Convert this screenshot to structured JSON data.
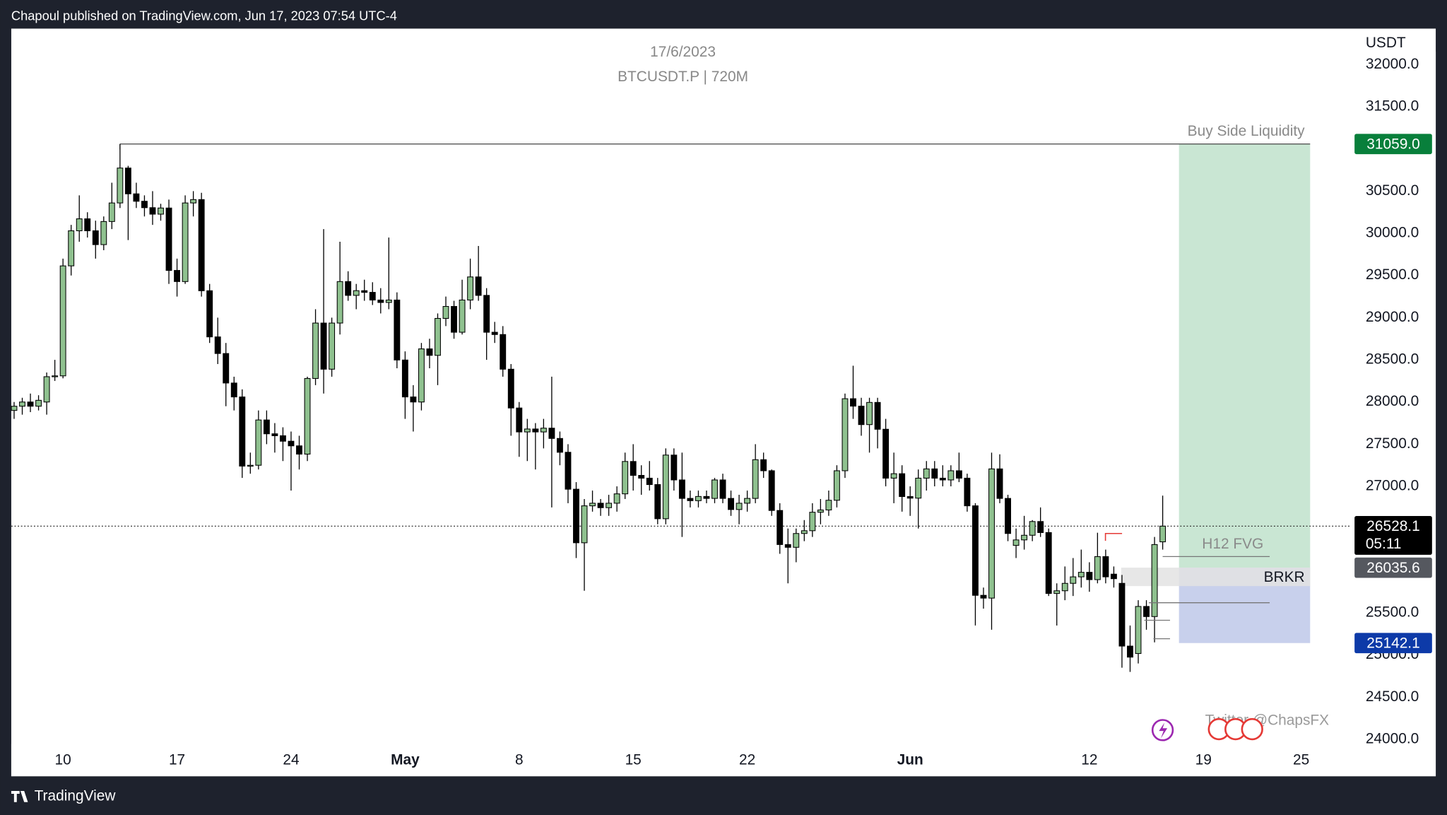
{
  "header": {
    "text": "Chapoul published on TradingView.com, Jun 17, 2023 07:54 UTC-4"
  },
  "footer": {
    "brand": "TradingView"
  },
  "chart_data": {
    "type": "candlestick",
    "title": "17/6/2023",
    "subtitle": "BTCUSDT.P | 720M",
    "y_axis_label": "USDT",
    "up_color": "#8fc18f",
    "down_color": "#000000",
    "open": [
      27900,
      27950,
      28000,
      27950,
      28000,
      28300,
      28310,
      29614,
      30030,
      30172,
      30030,
      29866,
      30140,
      30360,
      30774,
      30468,
      30380,
      30304,
      30227,
      30300,
      29560,
      29428,
      30360,
      30400,
      29319,
      28772,
      28575,
      28225,
      28060,
      27240,
      27250,
      27787,
      27623,
      27600,
      27535,
      27480,
      27382,
      28279,
      28936,
      28389,
      28936,
      29428,
      29264,
      29320,
      29300,
      29209,
      29180,
      29209,
      28498,
      28060,
      28000,
      28630,
      28553,
      28991,
      29133,
      28827,
      29209,
      29483,
      29264,
      28827,
      28800,
      28389,
      27929,
      27645,
      27680,
      27645,
      27690,
      27568,
      27404,
      26966,
      26331,
      26769,
      26800,
      26747,
      26800,
      26911,
      27295,
      27130,
      27097,
      27021,
      26616,
      27371,
      27076,
      26857,
      26830,
      26880,
      26857,
      27076,
      26857,
      26725,
      26800,
      26857,
      27316,
      27185,
      26714,
      26310,
      26277,
      26441,
      26474,
      26693,
      26720,
      26835,
      27185,
      28039,
      27951,
      27732,
      27995,
      27677,
      27097,
      27150,
      26879,
      26860,
      27097,
      27207,
      27097,
      27076,
      27185,
      27097,
      26769,
      25708,
      25675,
      27207,
      26857,
      26300,
      26365,
      26420,
      26583,
      26452,
      25730,
      25762,
      25850,
      25927,
      25981,
      25894,
      26167,
      25959,
      25850,
      25106,
      25018,
      25576,
      25456,
      26342
    ],
    "high": [
      28000,
      28050,
      28100,
      28080,
      28350,
      28500,
      29700,
      30100,
      30450,
      30250,
      30150,
      30200,
      30600,
      31059,
      30800,
      30600,
      30450,
      30500,
      30350,
      30400,
      29700,
      30450,
      30500,
      30480,
      29400,
      29000,
      28700,
      28300,
      28150,
      27400,
      27900,
      27900,
      27750,
      27700,
      27650,
      27600,
      28300,
      29100,
      30050,
      29000,
      29900,
      29550,
      29400,
      29450,
      29420,
      29350,
      29950,
      29300,
      28600,
      28200,
      28700,
      28750,
      29050,
      29250,
      29200,
      29450,
      29700,
      29850,
      29350,
      28950,
      28900,
      28450,
      28000,
      27800,
      27750,
      27800,
      28300,
      27650,
      27500,
      27050,
      26850,
      26950,
      26850,
      26900,
      27000,
      27400,
      27500,
      27250,
      27300,
      27100,
      27450,
      27450,
      27400,
      26950,
      26950,
      26950,
      27100,
      27150,
      26950,
      26900,
      26950,
      27500,
      27400,
      27200,
      26800,
      26500,
      26500,
      26600,
      26800,
      26850,
      26950,
      27250,
      28100,
      28430,
      28050,
      28050,
      28050,
      27800,
      27400,
      27250,
      27000,
      27200,
      27300,
      27300,
      27250,
      27250,
      27400,
      27150,
      26800,
      25800,
      27400,
      27380,
      26900,
      26500,
      26650,
      26600,
      26750,
      26500,
      25850,
      26050,
      26150,
      26250,
      26100,
      26450,
      26250,
      26050,
      25950,
      25350,
      25650,
      25650,
      26400,
      26890
    ],
    "low": [
      27800,
      27850,
      27880,
      27900,
      27850,
      28250,
      28280,
      29500,
      29900,
      29950,
      29700,
      29800,
      30050,
      30300,
      29920,
      30300,
      30200,
      30100,
      30150,
      29400,
      29250,
      29400,
      30200,
      29250,
      28700,
      28450,
      27950,
      27900,
      27100,
      27150,
      27200,
      27500,
      27400,
      27300,
      26950,
      27200,
      27300,
      28200,
      28100,
      28300,
      28800,
      29200,
      29100,
      29200,
      29150,
      29050,
      29100,
      28400,
      27800,
      27650,
      27900,
      28400,
      28200,
      28900,
      28750,
      28800,
      29100,
      29200,
      28500,
      28700,
      28300,
      27600,
      27350,
      27300,
      27200,
      27450,
      26750,
      27250,
      26800,
      26150,
      25762,
      26700,
      26650,
      26650,
      26700,
      26850,
      26950,
      26900,
      26950,
      26550,
      26550,
      26950,
      26400,
      26750,
      26750,
      26800,
      26800,
      26800,
      26650,
      26550,
      26700,
      26800,
      27100,
      26650,
      26200,
      25850,
      26100,
      26350,
      26400,
      26550,
      26650,
      26750,
      27100,
      27800,
      27600,
      27400,
      27450,
      27000,
      26800,
      26700,
      26650,
      26500,
      26950,
      27000,
      27000,
      27000,
      27050,
      26700,
      25350,
      25550,
      25300,
      26800,
      26350,
      26150,
      26250,
      26350,
      26400,
      25700,
      25350,
      25650,
      25700,
      25800,
      25750,
      25850,
      25850,
      25800,
      24850,
      24800,
      24900,
      25300,
      25150,
      26250
    ],
    "close": [
      27950,
      28000,
      27950,
      28020,
      28300,
      28310,
      29614,
      30030,
      30172,
      30030,
      29866,
      30140,
      30360,
      30774,
      30468,
      30380,
      30304,
      30227,
      30300,
      29560,
      29428,
      30360,
      30400,
      29319,
      28772,
      28575,
      28225,
      28060,
      27240,
      27250,
      27787,
      27623,
      27600,
      27535,
      27480,
      27382,
      28279,
      28936,
      28389,
      28936,
      29428,
      29264,
      29320,
      29300,
      29209,
      29180,
      29209,
      28498,
      28060,
      28000,
      28630,
      28553,
      28991,
      29133,
      28827,
      29209,
      29483,
      29264,
      28827,
      28800,
      28389,
      27929,
      27645,
      27680,
      27645,
      27690,
      27568,
      27404,
      26966,
      26331,
      26769,
      26800,
      26747,
      26800,
      26911,
      27295,
      27130,
      27097,
      27021,
      26616,
      27371,
      27076,
      26857,
      26830,
      26880,
      26857,
      27076,
      26857,
      26725,
      26800,
      26857,
      27316,
      27185,
      26714,
      26310,
      26277,
      26441,
      26474,
      26693,
      26720,
      26835,
      27185,
      28039,
      27951,
      27732,
      27995,
      27677,
      27097,
      27150,
      26879,
      26860,
      27097,
      27207,
      27097,
      27076,
      27185,
      27097,
      26769,
      25708,
      25675,
      27207,
      26857,
      26441,
      26365,
      26420,
      26583,
      26452,
      25730,
      25762,
      25850,
      25927,
      25981,
      25894,
      26167,
      25927,
      25905,
      25106,
      24975,
      25576,
      25456,
      26310,
      26528.1
    ],
    "xlim": [
      -0.35,
      164.1
    ],
    "xticks": [
      {
        "value": 6,
        "label": "10"
      },
      {
        "value": 20,
        "label": "17"
      },
      {
        "value": 34,
        "label": "24"
      },
      {
        "value": 48,
        "label": "May"
      },
      {
        "value": 62,
        "label": "8"
      },
      {
        "value": 76,
        "label": "15"
      },
      {
        "value": 90,
        "label": "22"
      },
      {
        "value": 110,
        "label": "Jun"
      },
      {
        "value": 132,
        "label": "12"
      },
      {
        "value": 146,
        "label": "19"
      },
      {
        "value": 158,
        "label": "25"
      }
    ],
    "ylim": [
      23946,
      32427
    ],
    "yticks": [
      {
        "value": 32000,
        "label": "32000.0"
      },
      {
        "value": 31500,
        "label": "31500.0"
      },
      {
        "value": 31000,
        "label": "31000.0"
      },
      {
        "value": 30500,
        "label": "30500.0"
      },
      {
        "value": 30000,
        "label": "30000.0"
      },
      {
        "value": 29500,
        "label": "29500.0"
      },
      {
        "value": 29000,
        "label": "29000.0"
      },
      {
        "value": 28500,
        "label": "28500.0"
      },
      {
        "value": 28000,
        "label": "28000.0"
      },
      {
        "value": 27500,
        "label": "27500.0"
      },
      {
        "value": 27000,
        "label": "27000.0"
      },
      {
        "value": 26500,
        "label": "26500.0"
      },
      {
        "value": 26000,
        "label": "26000.0"
      },
      {
        "value": 25500,
        "label": "25500.0"
      },
      {
        "value": 25000,
        "label": "25000.0"
      },
      {
        "value": 24500,
        "label": "24500.0"
      },
      {
        "value": 24000,
        "label": "24000.0"
      }
    ],
    "grid": false,
    "last_price": {
      "value": 26528.1,
      "label": "26528.1",
      "countdown": "05:11"
    },
    "levels": [
      {
        "value": 31059,
        "label": "31059.0",
        "color": "#087f3b"
      },
      {
        "value": 26035.6,
        "label": "26035.6",
        "color": "#55585f"
      },
      {
        "value": 25142.1,
        "label": "25142.1",
        "color": "#0d3aa8"
      }
    ],
    "annotations": [
      {
        "text": "Buy Side Liquidity"
      },
      {
        "text": "H12 FVG"
      },
      {
        "text": "BRKR"
      },
      {
        "text": "Twitter @ChapsFX"
      }
    ]
  }
}
